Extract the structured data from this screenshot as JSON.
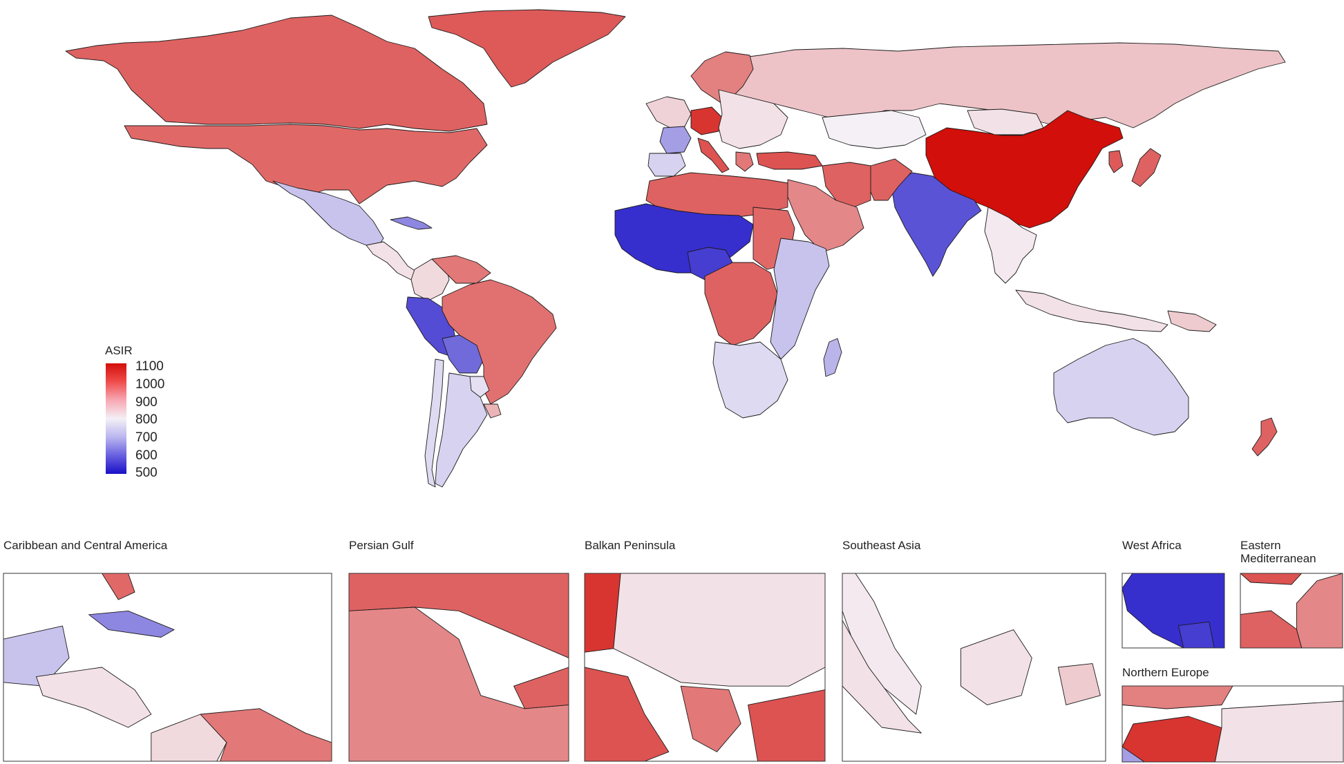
{
  "legend": {
    "title": "ASIR",
    "ticks": [
      "1100",
      "1000",
      "900",
      "800",
      "700",
      "600",
      "500"
    ],
    "min": 500,
    "max": 1100,
    "colors": {
      "low": "#1a10c8",
      "mid": "#f4f0f6",
      "high": "#d20f0a"
    }
  },
  "insets": [
    {
      "title": "Caribbean and Central America"
    },
    {
      "title": "Persian Gulf"
    },
    {
      "title": "Balkan Peninsula"
    },
    {
      "title": "Southeast Asia"
    },
    {
      "title": "West Africa"
    },
    {
      "title": "Eastern Mediterranean"
    },
    {
      "title": "Northern Europe"
    }
  ],
  "regions": [
    {
      "name": "Canada",
      "asir": 990
    },
    {
      "name": "United States",
      "asir": 980
    },
    {
      "name": "Greenland",
      "asir": 1000
    },
    {
      "name": "Mexico",
      "asir": 740
    },
    {
      "name": "Central America",
      "asir": 820
    },
    {
      "name": "Colombia",
      "asir": 830
    },
    {
      "name": "Venezuela",
      "asir": 960
    },
    {
      "name": "Peru",
      "asir": 580
    },
    {
      "name": "Bolivia",
      "asir": 620
    },
    {
      "name": "Brazil",
      "asir": 970
    },
    {
      "name": "Argentina",
      "asir": 760
    },
    {
      "name": "Chile",
      "asir": 770
    },
    {
      "name": "Paraguay",
      "asir": 780
    },
    {
      "name": "Uruguay",
      "asir": 880
    },
    {
      "name": "Russia",
      "asir": 860
    },
    {
      "name": "China",
      "asir": 1100
    },
    {
      "name": "India",
      "asir": 590
    },
    {
      "name": "Pakistan",
      "asir": 990
    },
    {
      "name": "Iran",
      "asir": 990
    },
    {
      "name": "Saudi Arabia",
      "asir": 940
    },
    {
      "name": "Kazakhstan",
      "asir": 800
    },
    {
      "name": "Mongolia",
      "asir": 820
    },
    {
      "name": "Turkey",
      "asir": 1010
    },
    {
      "name": "Western Europe",
      "asir": 840
    },
    {
      "name": "France",
      "asir": 690
    },
    {
      "name": "Spain",
      "asir": 760
    },
    {
      "name": "Germany",
      "asir": 1050
    },
    {
      "name": "Scandinavia",
      "asir": 950
    },
    {
      "name": "Eastern Europe",
      "asir": 820
    },
    {
      "name": "North Africa",
      "asir": 990
    },
    {
      "name": "West Africa",
      "asir": 540
    },
    {
      "name": "Nigeria",
      "asir": 560
    },
    {
      "name": "Central Africa",
      "asir": 990
    },
    {
      "name": "Sudan",
      "asir": 980
    },
    {
      "name": "East Africa",
      "asir": 740
    },
    {
      "name": "Southern Africa",
      "asir": 770
    },
    {
      "name": "Madagascar",
      "asir": 720
    },
    {
      "name": "Southeast Asia",
      "asir": 810
    },
    {
      "name": "Japan",
      "asir": 990
    },
    {
      "name": "Korea",
      "asir": 1000
    },
    {
      "name": "Indonesia",
      "asir": 820
    },
    {
      "name": "Papua New Guinea",
      "asir": 850
    },
    {
      "name": "Australia",
      "asir": 760
    },
    {
      "name": "New Zealand",
      "asir": 990
    },
    {
      "name": "Cuba",
      "asir": 660
    },
    {
      "name": "Greece",
      "asir": 960
    },
    {
      "name": "Italy",
      "asir": 1010
    }
  ]
}
